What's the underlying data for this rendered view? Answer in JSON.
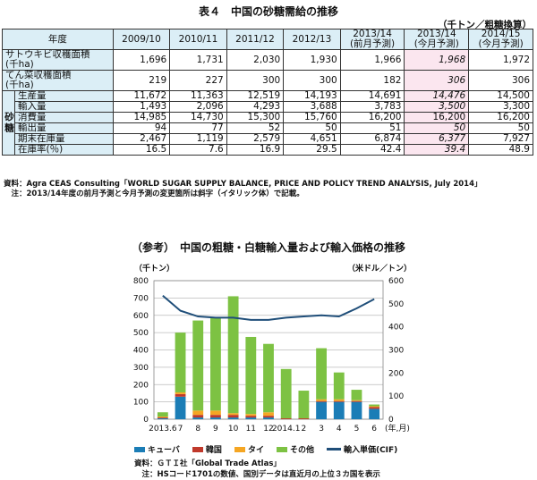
{
  "table": {
    "title": "表４　中国の砂糖需給の推移",
    "unit": "（千トン／粗糖換算）",
    "corner": "年度",
    "side_label": "砂糖",
    "columns": [
      "2009/10",
      "2010/11",
      "2011/12",
      "2012/13",
      "2013/14\n(前月予測)",
      "2013/14\n(今月予測)",
      "2014/15\n(今月予測)"
    ],
    "rows": [
      {
        "label": "サトウキビ収穫面積\n(千ha)",
        "values": [
          "1,696",
          "1,731",
          "2,030",
          "1,930",
          "1,966",
          "1,968",
          "1,972"
        ],
        "pink_italic": true
      },
      {
        "label": "てん菜収穫面積\n(千ha)",
        "values": [
          "219",
          "227",
          "300",
          "300",
          "182",
          "306",
          "306"
        ],
        "pink_italic": true
      },
      {
        "label": "生産量",
        "values": [
          "11,672",
          "11,363",
          "12,519",
          "14,193",
          "14,691",
          "14,476",
          "14,500"
        ],
        "pink_italic": true
      },
      {
        "label": "輸入量",
        "values": [
          "1,493",
          "2,096",
          "4,293",
          "3,688",
          "3,783",
          "3,500",
          "3,300"
        ],
        "pink_italic": true
      },
      {
        "label": "消費量",
        "values": [
          "14,985",
          "14,730",
          "15,300",
          "15,760",
          "16,200",
          "16,200",
          "16,200"
        ],
        "pink_italic": false
      },
      {
        "label": "輸出量",
        "values": [
          "94",
          "77",
          "52",
          "50",
          "51",
          "50",
          "50"
        ],
        "pink_italic": true
      },
      {
        "label": "期末在庫量",
        "values": [
          "2,467",
          "1,119",
          "2,579",
          "4,651",
          "6,874",
          "6,377",
          "7,927"
        ],
        "pink_italic": true
      },
      {
        "label": "在庫率(％)",
        "values": [
          "16.5",
          "7.6",
          "16.9",
          "29.5",
          "42.4",
          "39.4",
          "48.9"
        ],
        "pink_italic": true
      }
    ],
    "note1": "資料：Agra CEAS Consulting「WORLD SUGAR SUPPLY BALANCE, PRICE AND POLICY TREND ANALYSIS, July 2014」",
    "note2": "　注：2013/14年度の前月予測と今月予測の変更箇所は斜字（イタリック体）で記載。"
  },
  "chart_title": "（参考）　中国の粗糖・白糖輸入量および輸入価格の推移",
  "left_unit": "（千トン）",
  "right_unit": "（米ドル／トン）",
  "x_unit": "(年,月)",
  "chart_data": {
    "type": "bar",
    "stacked": true,
    "categories": [
      "2013.6",
      "7",
      "8",
      "9",
      "10",
      "11",
      "12",
      "2014.1",
      "2",
      "3",
      "4",
      "5",
      "6"
    ],
    "series": [
      {
        "name": "キューバ",
        "color": "#1b7db6",
        "values": [
          5,
          130,
          10,
          10,
          10,
          10,
          10,
          0,
          0,
          100,
          100,
          100,
          60
        ]
      },
      {
        "name": "韓国",
        "color": "#c0392b",
        "values": [
          5,
          15,
          15,
          15,
          15,
          10,
          10,
          5,
          5,
          5,
          5,
          5,
          10
        ]
      },
      {
        "name": "タイ",
        "color": "#f5a623",
        "values": [
          5,
          10,
          25,
          25,
          10,
          10,
          20,
          0,
          0,
          10,
          10,
          5,
          5
        ]
      },
      {
        "name": "その他",
        "color": "#7dc243",
        "values": [
          25,
          345,
          520,
          540,
          675,
          445,
          395,
          285,
          160,
          295,
          155,
          60,
          10
        ]
      }
    ],
    "line": {
      "name": "輸入単価(CIF)",
      "color": "#1f4e79",
      "axis": "right",
      "values": [
        535,
        470,
        445,
        440,
        440,
        430,
        430,
        440,
        445,
        450,
        445,
        480,
        520
      ]
    },
    "ylim_left": [
      0,
      800
    ],
    "ylim_right": [
      0,
      600
    ],
    "yticks_left": [
      0,
      100,
      200,
      300,
      400,
      500,
      600,
      700,
      800
    ],
    "yticks_right": [
      0,
      100,
      200,
      300,
      400,
      500,
      600
    ],
    "grid": true
  },
  "source1": "資料：ＧＴＩ社「Global Trade Atlas」",
  "source2": "　注：HSコード1701の数値、国別データは直近月の上位３カ国を表示"
}
